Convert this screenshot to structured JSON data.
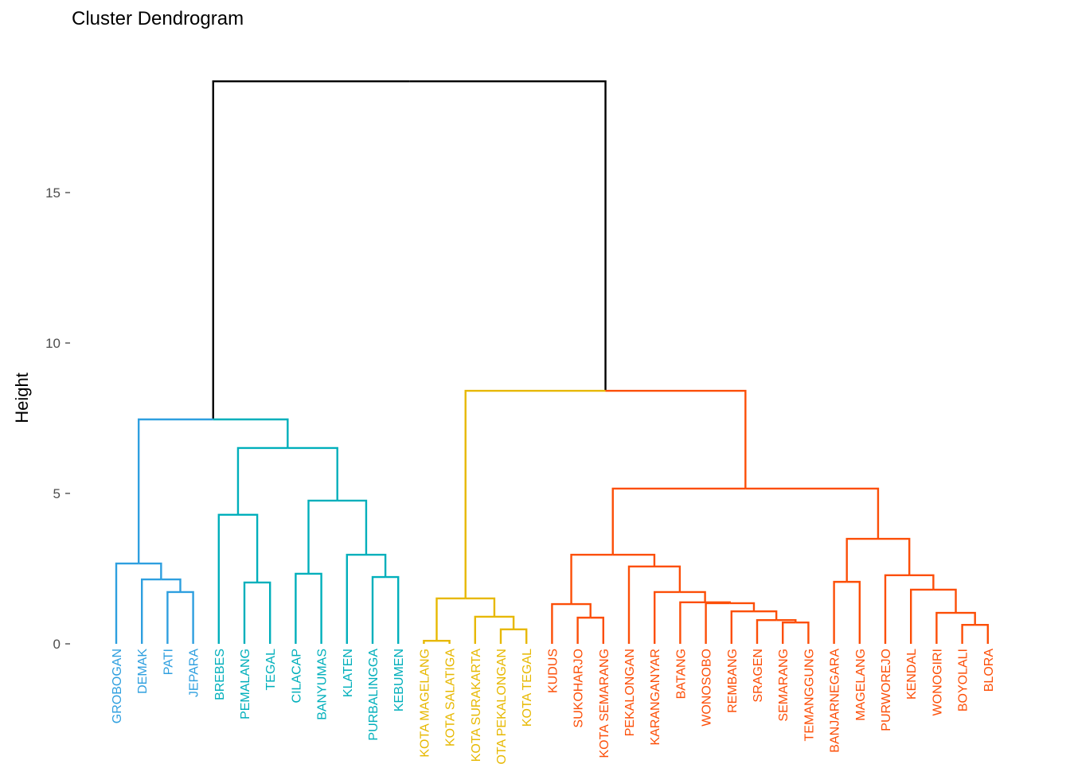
{
  "chart_data": {
    "type": "dendrogram",
    "title": "Cluster Dendrogram",
    "ylabel": "Height",
    "xlabel": "",
    "ylim": [
      0,
      19
    ],
    "yticks": [
      0,
      5,
      10,
      15
    ],
    "grid": false,
    "k_clusters": 4,
    "cluster_colors": [
      "#2E9FDF",
      "#00AFBB",
      "#E7B800",
      "#FC4E07"
    ],
    "link_color_above_cut": "#000000",
    "tree": {
      "h": 18.7,
      "c": [
        {
          "h": 7.46,
          "c": [
            {
              "h": 2.67,
              "c": [
                {
                  "label": "GROBOGAN",
                  "cluster": 0
                },
                {
                  "h": 2.14,
                  "c": [
                    {
                      "label": "DEMAK",
                      "cluster": 0
                    },
                    {
                      "h": 1.72,
                      "c": [
                        {
                          "label": "PATI",
                          "cluster": 0
                        },
                        {
                          "label": "JEPARA",
                          "cluster": 0
                        }
                      ]
                    }
                  ]
                }
              ]
            },
            {
              "h": 6.51,
              "c": [
                {
                  "h": 4.29,
                  "c": [
                    {
                      "label": "BREBES",
                      "cluster": 1
                    },
                    {
                      "h": 2.04,
                      "c": [
                        {
                          "label": "PEMALANG",
                          "cluster": 1
                        },
                        {
                          "label": "TEGAL",
                          "cluster": 1
                        }
                      ]
                    }
                  ]
                },
                {
                  "h": 4.76,
                  "c": [
                    {
                      "h": 2.33,
                      "c": [
                        {
                          "label": "CILACAP",
                          "cluster": 1
                        },
                        {
                          "label": "BANYUMAS",
                          "cluster": 1
                        }
                      ]
                    },
                    {
                      "h": 2.96,
                      "c": [
                        {
                          "label": "KLATEN",
                          "cluster": 1
                        },
                        {
                          "h": 2.22,
                          "c": [
                            {
                              "label": "PURBALINGGA",
                              "cluster": 1
                            },
                            {
                              "label": "KEBUMEN",
                              "cluster": 1
                            }
                          ]
                        }
                      ]
                    }
                  ]
                }
              ]
            }
          ]
        },
        {
          "h": 8.41,
          "c": [
            {
              "h": 1.51,
              "c": [
                {
                  "h": 0.1,
                  "c": [
                    {
                      "label": "KOTA MAGELANG",
                      "cluster": 2
                    },
                    {
                      "label": "KOTA SALATIGA",
                      "cluster": 2
                    }
                  ]
                },
                {
                  "h": 0.9,
                  "c": [
                    {
                      "label": "KOTA SURAKARTA",
                      "cluster": 2
                    },
                    {
                      "h": 0.48,
                      "c": [
                        {
                          "label": "KOTA PEKALONGAN",
                          "cluster": 2
                        },
                        {
                          "label": "KOTA TEGAL",
                          "cluster": 2
                        }
                      ]
                    }
                  ]
                }
              ]
            },
            {
              "h": 5.16,
              "c": [
                {
                  "h": 2.96,
                  "c": [
                    {
                      "h": 1.32,
                      "c": [
                        {
                          "label": "KUDUS",
                          "cluster": 3
                        },
                        {
                          "h": 0.87,
                          "c": [
                            {
                              "label": "SUKOHARJO",
                              "cluster": 3
                            },
                            {
                              "label": "KOTA SEMARANG",
                              "cluster": 3
                            }
                          ]
                        }
                      ]
                    },
                    {
                      "h": 2.57,
                      "c": [
                        {
                          "label": "PEKALONGAN",
                          "cluster": 3
                        },
                        {
                          "h": 1.72,
                          "c": [
                            {
                              "label": "KARANGANYAR",
                              "cluster": 3
                            },
                            {
                              "h": 1.38,
                              "c": [
                                {
                                  "label": "BATANG",
                                  "cluster": 3
                                },
                                {
                                  "h": 1.35,
                                  "c": [
                                    {
                                      "label": "WONOSOBO",
                                      "cluster": 3
                                    },
                                    {
                                      "h": 1.08,
                                      "c": [
                                        {
                                          "label": "REMBANG",
                                          "cluster": 3
                                        },
                                        {
                                          "h": 0.79,
                                          "c": [
                                            {
                                              "label": "SRAGEN",
                                              "cluster": 3
                                            },
                                            {
                                              "h": 0.71,
                                              "c": [
                                                {
                                                  "label": "SEMARANG",
                                                  "cluster": 3
                                                },
                                                {
                                                  "label": "TEMANGGUNG",
                                                  "cluster": 3
                                                }
                                              ]
                                            }
                                          ]
                                        }
                                      ]
                                    }
                                  ]
                                }
                              ]
                            }
                          ]
                        }
                      ]
                    }
                  ]
                },
                {
                  "h": 3.49,
                  "c": [
                    {
                      "h": 2.06,
                      "c": [
                        {
                          "label": "BANJARNEGARA",
                          "cluster": 3
                        },
                        {
                          "label": "MAGELANG",
                          "cluster": 3
                        }
                      ]
                    },
                    {
                      "h": 2.28,
                      "c": [
                        {
                          "label": "PURWOREJO",
                          "cluster": 3
                        },
                        {
                          "h": 1.8,
                          "c": [
                            {
                              "label": "KENDAL",
                              "cluster": 3
                            },
                            {
                              "h": 1.03,
                              "c": [
                                {
                                  "label": "WONOGIRI",
                                  "cluster": 3
                                },
                                {
                                  "h": 0.63,
                                  "c": [
                                    {
                                      "label": "BOYOLALI",
                                      "cluster": 3
                                    },
                                    {
                                      "label": "BLORA",
                                      "cluster": 3
                                    }
                                  ]
                                }
                              ]
                            }
                          ]
                        }
                      ]
                    }
                  ]
                }
              ]
            }
          ]
        }
      ]
    }
  }
}
